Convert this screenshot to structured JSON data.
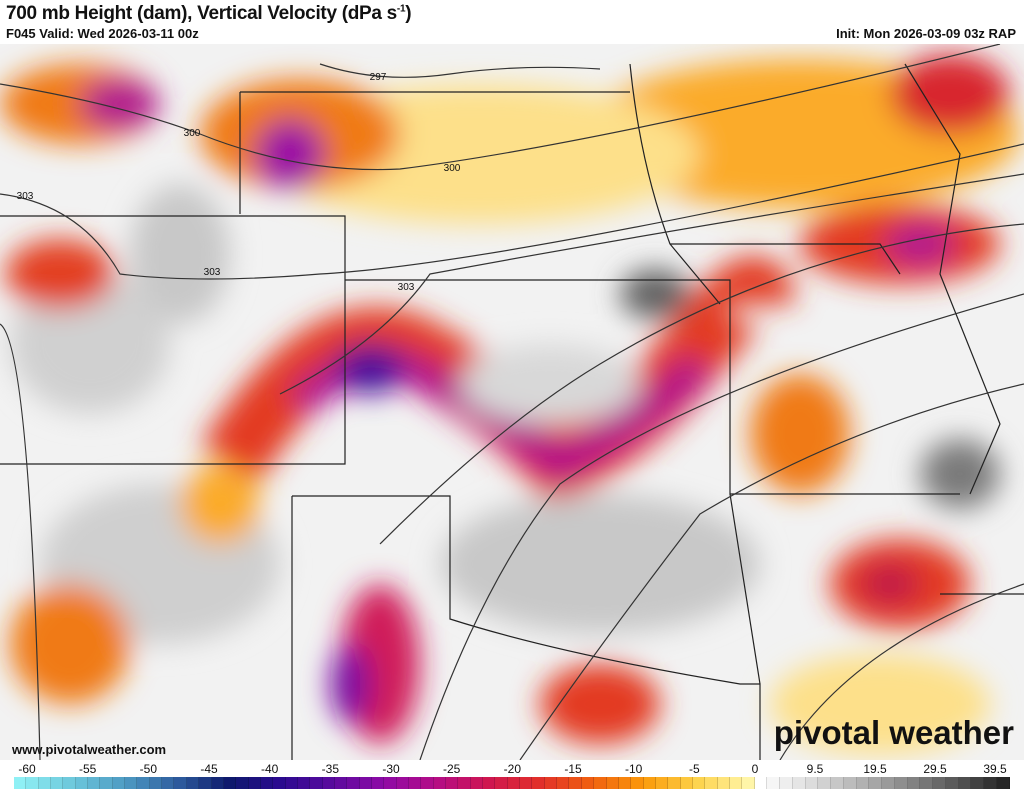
{
  "header": {
    "title": "700 mb Height (dam), Vertical Velocity (dPa s",
    "title_sup": "-1",
    "title_end": ")",
    "valid": "F045 Valid: Wed 2026-03-11 00z",
    "init": "Init: Mon 2026-03-09 03z RAP"
  },
  "map": {
    "contour_labels": [
      "297",
      "300",
      "300",
      "303",
      "303",
      "303"
    ]
  },
  "footer": {
    "url": "www.pivotalweather.com",
    "logo": "pivotal weather"
  },
  "colorbar": {
    "labels": [
      "-60",
      "-55",
      "-50",
      "-45",
      "-40",
      "-35",
      "-30",
      "-25",
      "-20",
      "-15",
      "-10",
      "-5",
      "0",
      "9.5",
      "19.5",
      "29.5",
      "39.5"
    ],
    "negative_colors": [
      "#8ff0f5",
      "#6dc8dc",
      "#4e9cc4",
      "#2f5fa0",
      "#0d1a6c",
      "#2a0a90",
      "#5a0a9e",
      "#8e0aa6",
      "#b40c86",
      "#cf1650",
      "#e2302a",
      "#f06010",
      "#fb9a0a",
      "#fdd24a",
      "#fff5a8"
    ],
    "positive_colors": [
      "#ffffff",
      "#e4e4e4",
      "#c4c4c4",
      "#a0a0a0",
      "#7a7a7a",
      "#505050",
      "#262626"
    ]
  }
}
